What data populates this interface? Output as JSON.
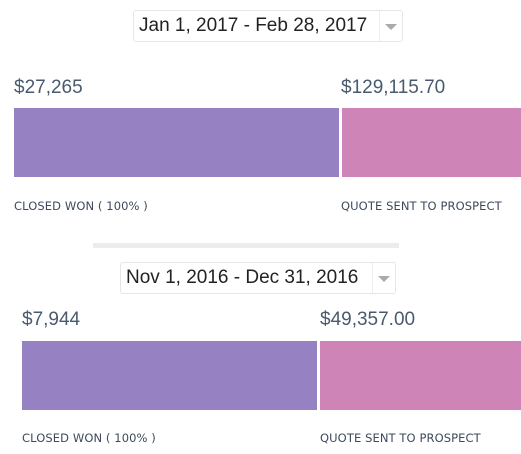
{
  "panels": [
    {
      "date_range": "Jan 1, 2017 - Feb 28, 2017",
      "stages": [
        {
          "amount": "$27,265",
          "label": "CLOSED WON ( 100% )"
        },
        {
          "amount": "$129,115.70",
          "label": "QUOTE SENT TO PROSPECT"
        }
      ]
    },
    {
      "date_range": "Nov 1, 2016 - Dec 31, 2016",
      "stages": [
        {
          "amount": "$7,944",
          "label": "CLOSED WON ( 100% )"
        },
        {
          "amount": "$49,357.00",
          "label": "QUOTE SENT TO PROSPECT"
        }
      ]
    }
  ]
}
